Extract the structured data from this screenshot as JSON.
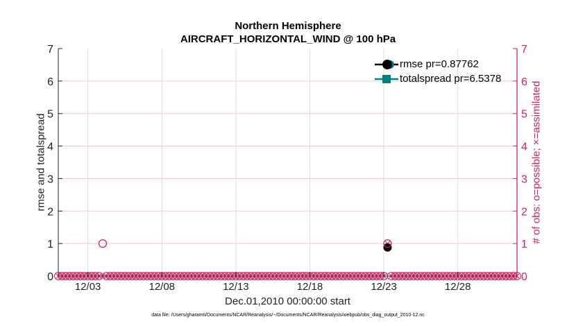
{
  "chart_data": {
    "type": "line",
    "title": "Northern Hemisphere",
    "subtitle": "AIRCRAFT_HORIZONTAL_WIND @ 100 hPa",
    "xlabel": "Dec.01,2010 00:00:00 start",
    "ylabel": "rmse and totalspread",
    "ylabel_right": "# of obs: o=possible; ×=assimilated",
    "footnote": "data file: /Users/gharamti/Documents/NCAR/Reanalysis/~/Documents/NCAR/Reanalysis/webpub/obs_diag_output_2010-12.nc",
    "xlim_days": [
      0,
      31
    ],
    "ylim": [
      0,
      7
    ],
    "ylim_right": [
      0,
      7
    ],
    "yticks": [
      "0",
      "1",
      "2",
      "3",
      "4",
      "5",
      "6",
      "7"
    ],
    "xticks": [
      {
        "day": 2,
        "label": "12/03"
      },
      {
        "day": 7,
        "label": "12/08"
      },
      {
        "day": 12,
        "label": "12/13"
      },
      {
        "day": 17,
        "label": "12/18"
      },
      {
        "day": 22,
        "label": "12/23"
      },
      {
        "day": 27,
        "label": "12/28"
      }
    ],
    "grid": true,
    "legend_position": "top-right",
    "series": [
      {
        "name": "rmse",
        "legend": "rmse pr=0.87762",
        "color": "#000000",
        "marker": "circle",
        "points": [
          [
            22.25,
            0.88
          ]
        ]
      },
      {
        "name": "totalspread",
        "legend": "totalspread pr=6.5378",
        "color": "#008080",
        "marker": "square",
        "points": []
      }
    ],
    "obs_counts": {
      "start_day": 0,
      "step_days": 0.25,
      "count": 125,
      "possible_nonzero": [
        [
          3.0,
          1
        ],
        [
          22.25,
          1
        ]
      ],
      "assimilated_nonzero": [
        [
          22.25,
          1
        ]
      ],
      "color": "#d6205e"
    }
  }
}
